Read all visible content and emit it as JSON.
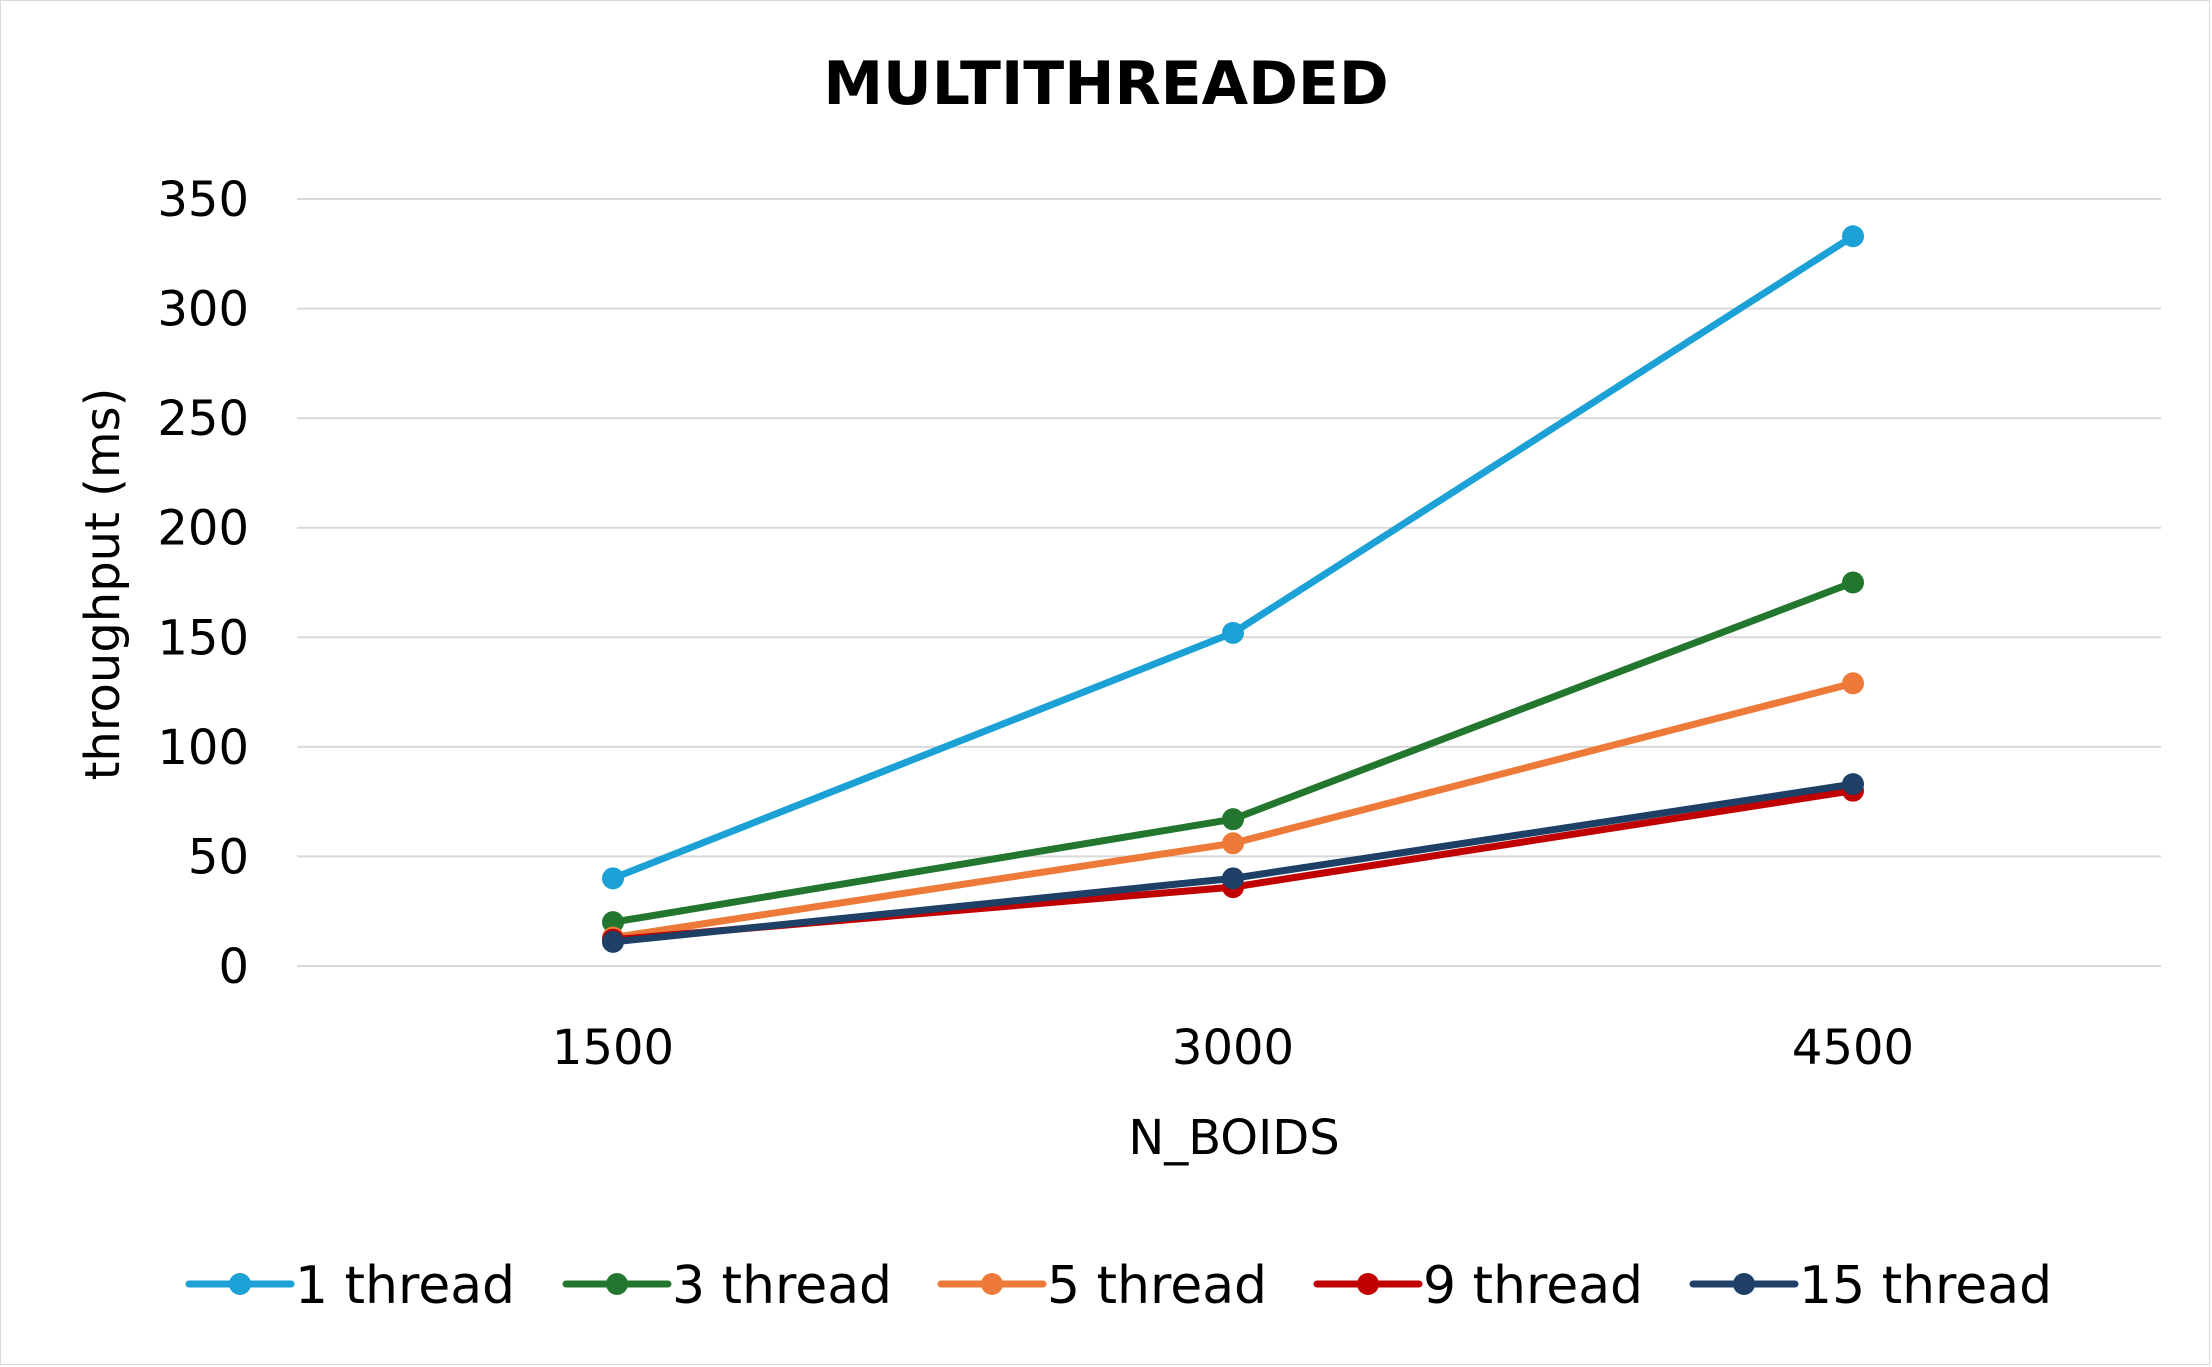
{
  "chart_data": {
    "type": "line",
    "title": "MULTITHREADED",
    "xlabel": "N_BOIDS",
    "ylabel": "throughput (ms)",
    "categories": [
      "1500",
      "3000",
      "4500"
    ],
    "ylim": [
      0,
      350
    ],
    "yticks": [
      "0",
      "50",
      "100",
      "150",
      "200",
      "250",
      "300",
      "350"
    ],
    "grid": true,
    "legend_position": "bottom",
    "series": [
      {
        "name": "1 thread",
        "color": "#1ba1d6",
        "values": [
          40,
          152,
          333
        ]
      },
      {
        "name": "3 thread",
        "color": "#23762e",
        "values": [
          20,
          67,
          175
        ]
      },
      {
        "name": "5 thread",
        "color": "#ee7a3a",
        "values": [
          13,
          56,
          129
        ]
      },
      {
        "name": "9 thread",
        "color": "#c00000",
        "values": [
          12,
          36,
          80
        ]
      },
      {
        "name": "15 thread",
        "color": "#1e3f66",
        "values": [
          11,
          40,
          83
        ]
      }
    ]
  }
}
